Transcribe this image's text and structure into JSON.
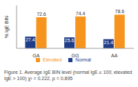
{
  "chart_data": {
    "type": "bar",
    "categories": [
      "GA",
      "GG",
      "AA"
    ],
    "series": [
      {
        "name": "Normal",
        "color": "#1f3c88",
        "values": [
          27.4,
          25.6,
          21.4
        ]
      },
      {
        "name": "Elevated",
        "color": "#f7941d",
        "values": [
          72.6,
          74.4,
          78.6
        ]
      }
    ],
    "y_label": "% IgE BIN",
    "ylim": [
      0,
      100
    ],
    "tick_labels": "x",
    "legend": "bottom",
    "data_labels": true,
    "annotations": [
      "Figure 1. Average IgE BIN level (normal IgE ≤ 100; elevated",
      "IgE > 100) χ² = 0.222, p = 0.895"
    ]
  }
}
